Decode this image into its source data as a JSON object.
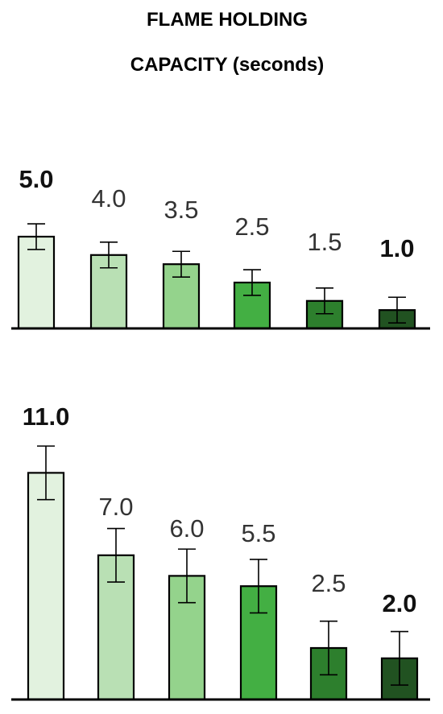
{
  "title_lines": [
    "FLAME HOLDING",
    "CAPACITY (seconds)"
  ],
  "colors": [
    "#e2f2df",
    "#b9e0b4",
    "#94d38c",
    "#43af43",
    "#2d7f2d",
    "#215221"
  ],
  "chart_data": [
    {
      "type": "bar",
      "values": [
        5.0,
        4.0,
        3.5,
        2.5,
        1.5,
        1.0
      ],
      "labels": [
        "5.0",
        "4.0",
        "3.5",
        "2.5",
        "1.5",
        "1.0"
      ],
      "bold_labels": [
        true,
        false,
        false,
        false,
        false,
        true
      ],
      "error": [
        0.7,
        0.7,
        0.7,
        0.7,
        0.7,
        0.7
      ]
    },
    {
      "type": "bar",
      "values": [
        11.0,
        7.0,
        6.0,
        5.5,
        2.5,
        2.0
      ],
      "labels": [
        "11.0",
        "7.0",
        "6.0",
        "5.5",
        "2.5",
        "2.0"
      ],
      "bold_labels": [
        true,
        false,
        false,
        false,
        false,
        true
      ],
      "error": [
        1.3,
        1.3,
        1.3,
        1.3,
        1.3,
        1.3
      ]
    }
  ]
}
